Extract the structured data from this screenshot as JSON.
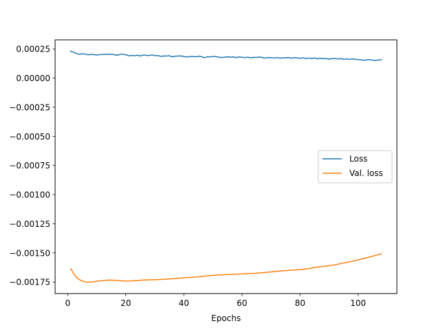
{
  "chart_data": {
    "type": "line",
    "title": "",
    "xlabel": "Epochs",
    "ylabel": "",
    "xlim": [
      -4.35,
      113.35
    ],
    "ylim": [
      -0.001849,
      0.000328
    ],
    "x_ticks": [
      0,
      20,
      40,
      60,
      80,
      100
    ],
    "x_tick_labels": [
      "0",
      "20",
      "40",
      "60",
      "80",
      "100"
    ],
    "y_ticks": [
      0.00025,
      0.0,
      -0.00025,
      -0.0005,
      -0.00075,
      -0.001,
      -0.00125,
      -0.0015,
      -0.00175
    ],
    "y_tick_labels": [
      "0.00025",
      "0.00000",
      "−0.00025",
      "−0.00050",
      "−0.00075",
      "−0.00100",
      "−0.00125",
      "−0.00150",
      "−0.00175"
    ],
    "grid": false,
    "legend_position": "center-right",
    "series": [
      {
        "name": "Loss",
        "color": "#1f77b4",
        "x": [
          1,
          2,
          3,
          4,
          5,
          6,
          7,
          8,
          9,
          10,
          11,
          12,
          13,
          14,
          15,
          16,
          17,
          18,
          19,
          20,
          21,
          22,
          23,
          24,
          25,
          26,
          27,
          28,
          29,
          30,
          31,
          32,
          33,
          34,
          35,
          36,
          37,
          38,
          39,
          40,
          41,
          42,
          43,
          44,
          45,
          46,
          47,
          48,
          49,
          50,
          51,
          52,
          53,
          54,
          55,
          56,
          57,
          58,
          59,
          60,
          61,
          62,
          63,
          64,
          65,
          66,
          67,
          68,
          69,
          70,
          71,
          72,
          73,
          74,
          75,
          76,
          77,
          78,
          79,
          80,
          81,
          82,
          83,
          84,
          85,
          86,
          87,
          88,
          89,
          90,
          91,
          92,
          93,
          94,
          95,
          96,
          97,
          98,
          99,
          100,
          101,
          102,
          103,
          104,
          105,
          106,
          107,
          108
        ],
        "y": [
          0.00023,
          0.000222,
          0.00021,
          0.000205,
          0.000208,
          0.000206,
          0.0002,
          0.000204,
          0.000202,
          0.000197,
          0.000202,
          0.000203,
          0.000205,
          0.000203,
          0.000204,
          0.000201,
          0.000196,
          0.000203,
          0.000206,
          0.0002,
          0.000191,
          0.000195,
          0.000192,
          0.000196,
          0.00019,
          0.000198,
          0.000196,
          0.000193,
          0.0002,
          0.000192,
          0.000194,
          0.000186,
          0.00019,
          0.000189,
          0.000192,
          0.000182,
          0.000188,
          0.000189,
          0.00019,
          0.000185,
          0.000181,
          0.000185,
          0.000186,
          0.000183,
          0.000187,
          0.000185,
          0.000175,
          0.000183,
          0.000182,
          0.000186,
          0.000184,
          0.00018,
          0.000177,
          0.000179,
          0.000183,
          0.00018,
          0.000182,
          0.000176,
          0.000181,
          0.000179,
          0.000175,
          0.00018,
          0.000174,
          0.000178,
          0.000177,
          0.000181,
          0.000176,
          0.000172,
          0.000177,
          0.000175,
          0.000172,
          0.000176,
          0.000171,
          0.000174,
          0.000173,
          0.000177,
          0.000171,
          0.000175,
          0.000173,
          0.00017,
          0.000174,
          0.000168,
          0.000172,
          0.000168,
          0.000173,
          0.000166,
          0.00017,
          0.000166,
          0.000168,
          0.000163,
          0.000167,
          0.000169,
          0.000164,
          0.000168,
          0.000161,
          0.000165,
          0.000161,
          0.000164,
          0.000162,
          0.000158,
          0.000157,
          0.000153,
          0.000156,
          0.000158,
          0.000154,
          0.000151,
          0.000155,
          0.000158
        ]
      },
      {
        "name": "Val. loss",
        "color": "#ff7f0e",
        "x": [
          1,
          2,
          3,
          4,
          5,
          6,
          7,
          8,
          9,
          10,
          12,
          14,
          16,
          18,
          20,
          22,
          24,
          26,
          28,
          30,
          32,
          34,
          36,
          38,
          40,
          42,
          44,
          46,
          48,
          50,
          52,
          54,
          56,
          58,
          60,
          62,
          64,
          66,
          68,
          70,
          72,
          74,
          76,
          78,
          80,
          82,
          84,
          86,
          88,
          90,
          92,
          94,
          96,
          98,
          100,
          102,
          104,
          106,
          108
        ],
        "y": [
          -0.001635,
          -0.001675,
          -0.00171,
          -0.00173,
          -0.001742,
          -0.00175,
          -0.001752,
          -0.00175,
          -0.001747,
          -0.001743,
          -0.001738,
          -0.001733,
          -0.001735,
          -0.001738,
          -0.001742,
          -0.00174,
          -0.001736,
          -0.001733,
          -0.001731,
          -0.00173,
          -0.001728,
          -0.001725,
          -0.001722,
          -0.001718,
          -0.001714,
          -0.00171,
          -0.001708,
          -0.001702,
          -0.001697,
          -0.001693,
          -0.00169,
          -0.001687,
          -0.001685,
          -0.001682,
          -0.00168,
          -0.001678,
          -0.001676,
          -0.001672,
          -0.001668,
          -0.001663,
          -0.001658,
          -0.001654,
          -0.00165,
          -0.001647,
          -0.001644,
          -0.001638,
          -0.00163,
          -0.001622,
          -0.001616,
          -0.00161,
          -0.001602,
          -0.001592,
          -0.001582,
          -0.001572,
          -0.00156,
          -0.001548,
          -0.001535,
          -0.001522,
          -0.001507
        ]
      }
    ]
  }
}
